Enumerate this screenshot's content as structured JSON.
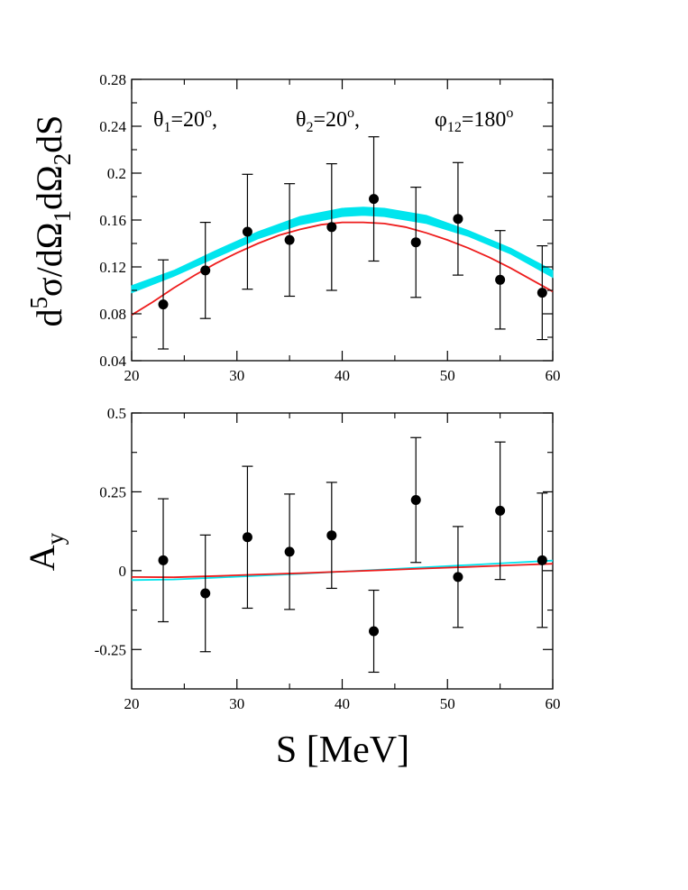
{
  "chart_data": [
    {
      "type": "scatter",
      "panel": "top",
      "ylabel": "d5σ/dΩ1dΩ2dS",
      "annotations": [
        "θ1=20o,",
        "θ2=20o,",
        "φ12=180o"
      ],
      "xlim": [
        20,
        60
      ],
      "ylim": [
        0.04,
        0.28
      ],
      "xticks": [
        20,
        30,
        40,
        50,
        60
      ],
      "yticks": [
        0.04,
        0.08,
        0.12,
        0.16,
        0.2,
        0.24,
        0.28
      ],
      "tick_labels_x": [
        "20",
        "30",
        "40",
        "50",
        "60"
      ],
      "tick_labels_y": [
        "0.04",
        "0.08",
        "0.12",
        "0.16",
        "0.2",
        "0.24",
        "0.28"
      ],
      "points": {
        "x": [
          23,
          27,
          31,
          35,
          39,
          43,
          47,
          51,
          55,
          59
        ],
        "y": [
          0.088,
          0.117,
          0.15,
          0.143,
          0.154,
          0.178,
          0.141,
          0.161,
          0.109,
          0.098
        ],
        "err": [
          0.038,
          0.041,
          0.049,
          0.048,
          0.054,
          0.053,
          0.047,
          0.048,
          0.042,
          0.04
        ]
      },
      "curves": [
        {
          "color": "#00e5ee",
          "style": "band",
          "x": [
            20,
            24,
            28,
            32,
            36,
            40,
            42,
            44,
            48,
            52,
            56,
            60
          ],
          "low": [
            0.098,
            0.112,
            0.128,
            0.144,
            0.156,
            0.163,
            0.164,
            0.163,
            0.157,
            0.146,
            0.131,
            0.111
          ],
          "high": [
            0.104,
            0.117,
            0.134,
            0.15,
            0.163,
            0.17,
            0.171,
            0.17,
            0.164,
            0.151,
            0.136,
            0.117
          ]
        },
        {
          "color": "#ee1c1c",
          "style": "line",
          "x": [
            20,
            22,
            24,
            26,
            28,
            30,
            32,
            34,
            36,
            38,
            40,
            42,
            44,
            46,
            48,
            50,
            52,
            54,
            56,
            58,
            60
          ],
          "y": [
            0.079,
            0.09,
            0.102,
            0.113,
            0.123,
            0.132,
            0.14,
            0.147,
            0.152,
            0.156,
            0.158,
            0.158,
            0.157,
            0.154,
            0.149,
            0.143,
            0.136,
            0.128,
            0.119,
            0.109,
            0.099
          ]
        }
      ]
    },
    {
      "type": "scatter",
      "panel": "bottom",
      "xlabel": "S [MeV]",
      "ylabel": "Ay",
      "xlim": [
        20,
        60
      ],
      "ylim": [
        -0.375,
        0.5
      ],
      "xticks": [
        20,
        30,
        40,
        50,
        60
      ],
      "yticks": [
        -0.25,
        0,
        0.25,
        0.5
      ],
      "tick_labels_x": [
        "20",
        "30",
        "40",
        "50",
        "60"
      ],
      "tick_labels_y": [
        "-0.25",
        "0",
        "0.25",
        "0.5"
      ],
      "points": {
        "x": [
          23,
          27,
          31,
          35,
          39,
          43,
          47,
          51,
          55,
          59
        ],
        "y": [
          0.033,
          -0.072,
          0.106,
          0.06,
          0.112,
          -0.192,
          0.224,
          -0.02,
          0.19,
          0.033
        ],
        "err": [
          0.195,
          0.185,
          0.225,
          0.183,
          0.168,
          0.13,
          0.198,
          0.16,
          0.218,
          0.213
        ]
      },
      "curves": [
        {
          "color": "#00e5ee",
          "style": "line",
          "x": [
            20,
            24,
            28,
            32,
            36,
            40,
            44,
            48,
            52,
            56,
            60
          ],
          "y": [
            -0.03,
            -0.028,
            -0.022,
            -0.016,
            -0.01,
            -0.003,
            0.004,
            0.011,
            0.018,
            0.025,
            0.032
          ]
        },
        {
          "color": "#ee1c1c",
          "style": "line",
          "x": [
            20,
            24,
            28,
            32,
            36,
            40,
            44,
            48,
            52,
            56,
            60
          ],
          "y": [
            -0.02,
            -0.021,
            -0.017,
            -0.012,
            -0.008,
            -0.003,
            0.002,
            0.007,
            0.012,
            0.017,
            0.022
          ]
        }
      ]
    }
  ]
}
